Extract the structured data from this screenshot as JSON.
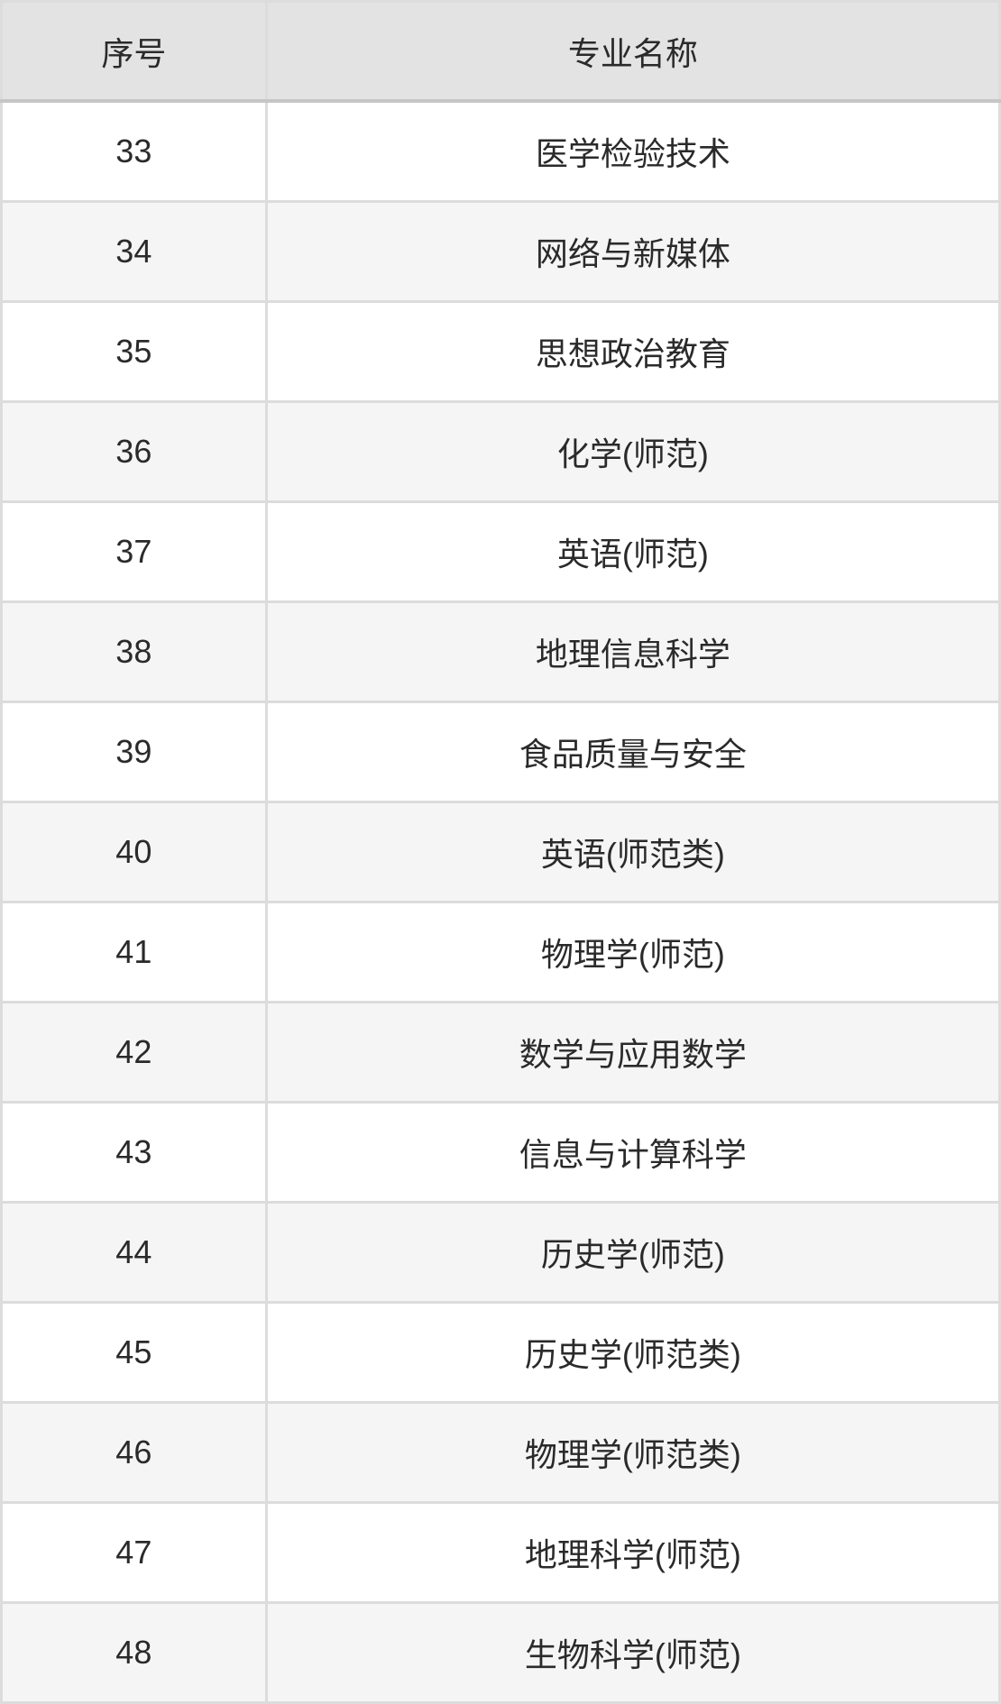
{
  "table": {
    "columns": [
      {
        "key": "index",
        "label": "序号"
      },
      {
        "key": "name",
        "label": "专业名称"
      }
    ],
    "rows": [
      {
        "index": "33",
        "name": "医学检验技术"
      },
      {
        "index": "34",
        "name": "网络与新媒体"
      },
      {
        "index": "35",
        "name": "思想政治教育"
      },
      {
        "index": "36",
        "name": "化学(师范)"
      },
      {
        "index": "37",
        "name": "英语(师范)"
      },
      {
        "index": "38",
        "name": "地理信息科学"
      },
      {
        "index": "39",
        "name": "食品质量与安全"
      },
      {
        "index": "40",
        "name": "英语(师范类)"
      },
      {
        "index": "41",
        "name": "物理学(师范)"
      },
      {
        "index": "42",
        "name": "数学与应用数学"
      },
      {
        "index": "43",
        "name": "信息与计算科学"
      },
      {
        "index": "44",
        "name": "历史学(师范)"
      },
      {
        "index": "45",
        "name": "历史学(师范类)"
      },
      {
        "index": "46",
        "name": "物理学(师范类)"
      },
      {
        "index": "47",
        "name": "地理科学(师范)"
      },
      {
        "index": "48",
        "name": "生物科学(师范)"
      }
    ]
  },
  "colors": {
    "header_bg": "#e3e3e3",
    "alt_row_bg": "#f5f5f5",
    "row_bg": "#ffffff",
    "border": "#dcdcdc",
    "outer_border": "#c9c9c9",
    "text": "#2a2a2a"
  }
}
